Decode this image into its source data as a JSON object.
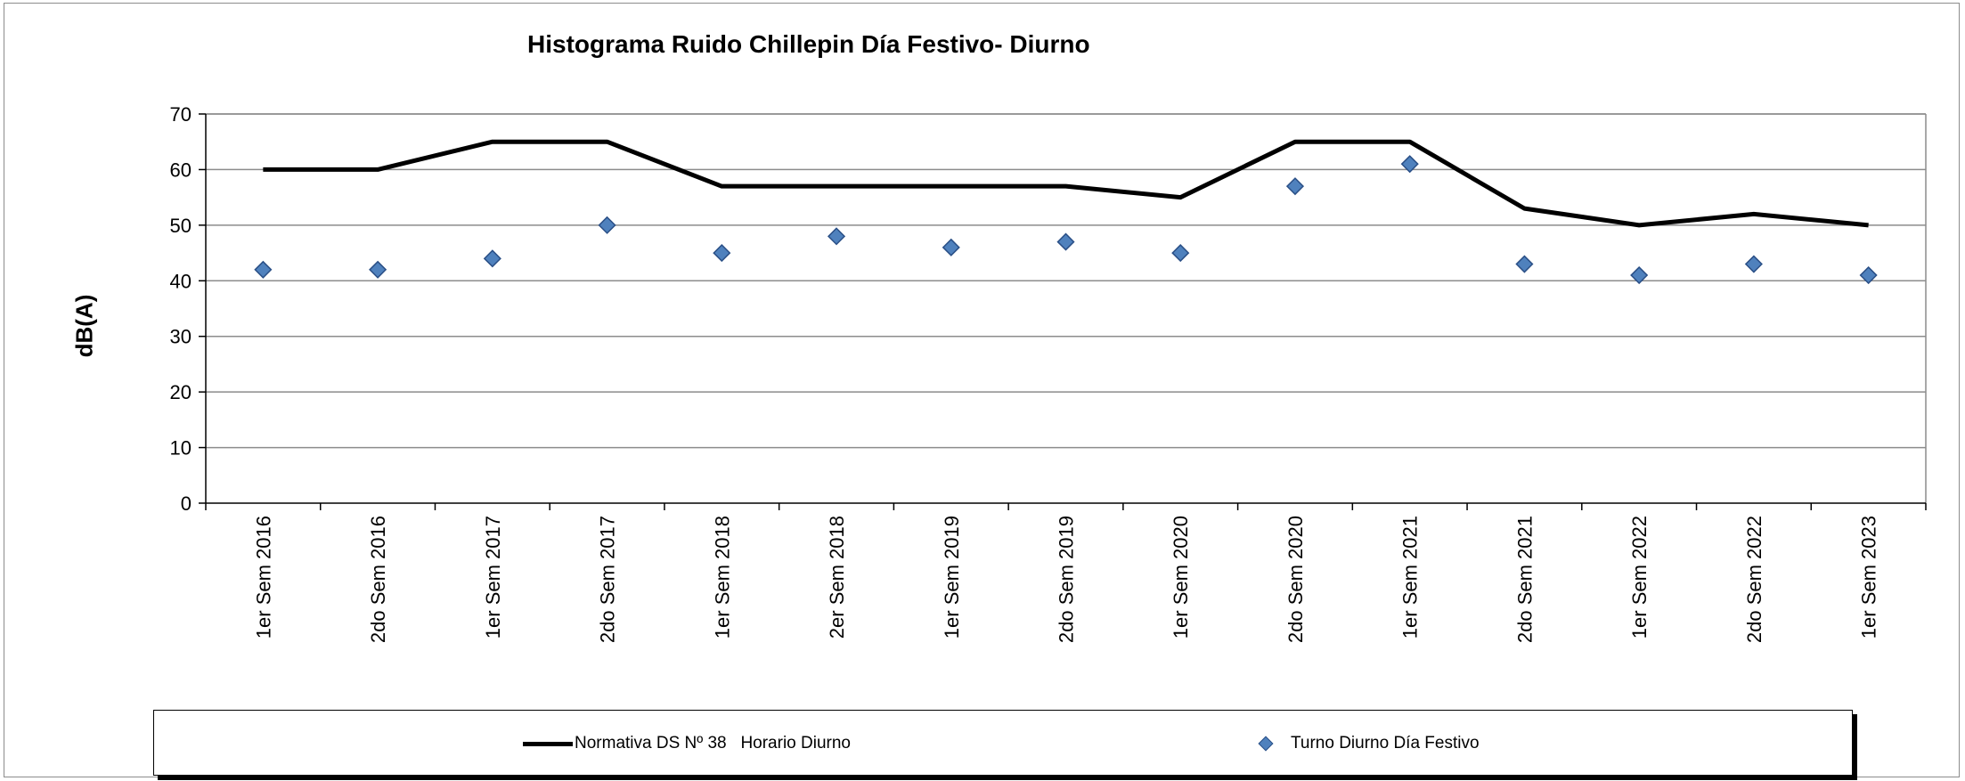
{
  "chart_data": {
    "type": "line",
    "title": "Histograma Ruido Chillepin Día Festivo- Diurno",
    "xlabel": "",
    "ylabel": "dB(A)",
    "ylim": [
      0,
      70
    ],
    "yticks": [
      0,
      10,
      20,
      30,
      40,
      50,
      60,
      70
    ],
    "grid": true,
    "legend_position": "bottom",
    "categories": [
      "1er Sem 2016",
      "2do Sem 2016",
      "1er Sem 2017",
      "2do Sem 2017",
      "1er Sem 2018",
      "2er Sem 2018",
      "1er Sem 2019",
      "2do Sem 2019",
      "1er Sem 2020",
      "2do Sem 2020",
      "1er Sem 2021",
      "2do Sem 2021",
      "1er Sem 2022",
      "2do Sem 2022",
      "1er Sem 2023"
    ],
    "series": [
      {
        "name": "Normativa DS Nº 38   Horario Diurno",
        "style": "line",
        "color": "#000000",
        "values": [
          60,
          60,
          65,
          65,
          57,
          57,
          57,
          57,
          55,
          65,
          65,
          53,
          50,
          52,
          50
        ]
      },
      {
        "name": "Turno Diurno Día Festivo",
        "style": "markers",
        "marker": "diamond",
        "color": "#4f81bd",
        "values": [
          42,
          42,
          44,
          50,
          45,
          48,
          46,
          47,
          45,
          57,
          61,
          43,
          41,
          43,
          41
        ]
      }
    ]
  }
}
